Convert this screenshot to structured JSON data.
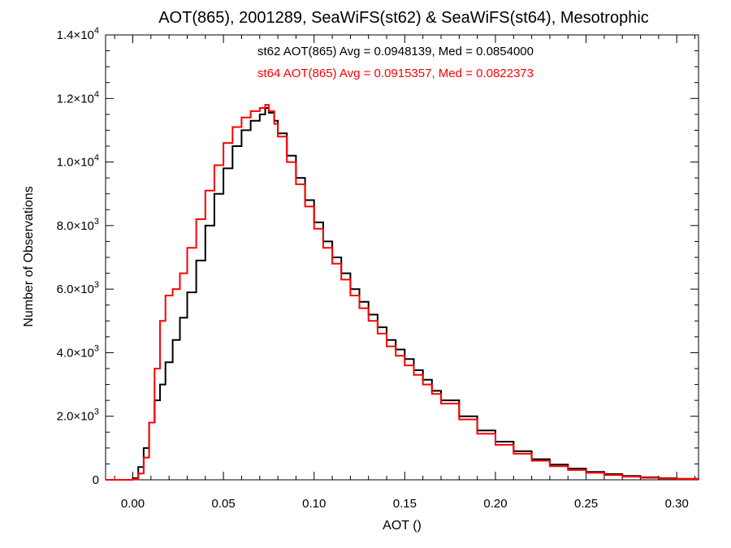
{
  "chart_data": {
    "type": "line",
    "step": true,
    "title": "AOT(865), 2001289, SeaWiFS(st62) & SeaWiFS(st64), Mesotrophic",
    "xlabel": "AOT ()",
    "ylabel": "Number of Observations",
    "xlim": [
      -0.015,
      0.312
    ],
    "ylim": [
      0,
      14000
    ],
    "grid": false,
    "x_ticks": [
      0.0,
      0.05,
      0.1,
      0.15,
      0.2,
      0.25,
      0.3
    ],
    "x_tick_labels": [
      "0.00",
      "0.05",
      "0.10",
      "0.15",
      "0.20",
      "0.25",
      "0.30"
    ],
    "y_ticks": [
      0,
      2000,
      4000,
      6000,
      8000,
      10000,
      12000,
      14000
    ],
    "y_tick_labels": [
      {
        "mant": "0",
        "exp": ""
      },
      {
        "mant": "2.0×10",
        "exp": "3"
      },
      {
        "mant": "4.0×10",
        "exp": "3"
      },
      {
        "mant": "6.0×10",
        "exp": "3"
      },
      {
        "mant": "8.0×10",
        "exp": "3"
      },
      {
        "mant": "1.0×10",
        "exp": "4"
      },
      {
        "mant": "1.2×10",
        "exp": "4"
      },
      {
        "mant": "1.4×10",
        "exp": "4"
      }
    ],
    "annotations": [
      "st62 AOT(865) Avg = 0.0948139, Med = 0.0854000",
      "st64 AOT(865) Avg = 0.0915357, Med = 0.0822373"
    ],
    "series": [
      {
        "color": "#000000",
        "x": [
          -0.015,
          -0.005,
          0.0,
          0.003,
          0.006,
          0.009,
          0.012,
          0.015,
          0.018,
          0.022,
          0.026,
          0.03,
          0.035,
          0.04,
          0.045,
          0.05,
          0.055,
          0.06,
          0.065,
          0.07,
          0.073,
          0.075,
          0.078,
          0.08,
          0.085,
          0.09,
          0.095,
          0.1,
          0.105,
          0.11,
          0.115,
          0.12,
          0.125,
          0.13,
          0.135,
          0.14,
          0.145,
          0.15,
          0.155,
          0.16,
          0.165,
          0.17,
          0.18,
          0.19,
          0.2,
          0.21,
          0.22,
          0.23,
          0.24,
          0.25,
          0.26,
          0.27,
          0.28,
          0.29,
          0.3,
          0.312
        ],
        "y": [
          0,
          0,
          50,
          400,
          1000,
          1800,
          2500,
          3000,
          3700,
          4400,
          5100,
          5900,
          6900,
          8000,
          9000,
          9800,
          10500,
          11000,
          11300,
          11500,
          11700,
          11550,
          11300,
          10900,
          10200,
          9500,
          8800,
          8100,
          7500,
          7000,
          6500,
          6000,
          5600,
          5200,
          4800,
          4400,
          4100,
          3800,
          3450,
          3150,
          2800,
          2500,
          2000,
          1550,
          1200,
          900,
          650,
          480,
          350,
          250,
          180,
          120,
          80,
          50,
          30,
          15
        ]
      },
      {
        "color": "#ff0000",
        "x": [
          -0.015,
          -0.005,
          0.0,
          0.003,
          0.006,
          0.009,
          0.012,
          0.015,
          0.018,
          0.022,
          0.026,
          0.03,
          0.035,
          0.04,
          0.045,
          0.05,
          0.055,
          0.06,
          0.065,
          0.07,
          0.073,
          0.075,
          0.078,
          0.08,
          0.085,
          0.09,
          0.095,
          0.1,
          0.105,
          0.11,
          0.115,
          0.12,
          0.125,
          0.13,
          0.135,
          0.14,
          0.145,
          0.15,
          0.155,
          0.16,
          0.165,
          0.17,
          0.18,
          0.19,
          0.2,
          0.21,
          0.22,
          0.23,
          0.24,
          0.25,
          0.26,
          0.27,
          0.28,
          0.29,
          0.3,
          0.312
        ],
        "y": [
          0,
          0,
          20,
          200,
          700,
          1800,
          3500,
          5000,
          5800,
          6000,
          6500,
          7300,
          8200,
          9100,
          9900,
          10600,
          11100,
          11400,
          11600,
          11700,
          11800,
          11600,
          11200,
          10800,
          10000,
          9300,
          8600,
          7900,
          7300,
          6800,
          6300,
          5800,
          5400,
          5000,
          4600,
          4200,
          3900,
          3600,
          3300,
          3000,
          2700,
          2400,
          1900,
          1450,
          1100,
          820,
          600,
          430,
          310,
          220,
          150,
          100,
          65,
          40,
          25,
          12
        ]
      }
    ]
  }
}
